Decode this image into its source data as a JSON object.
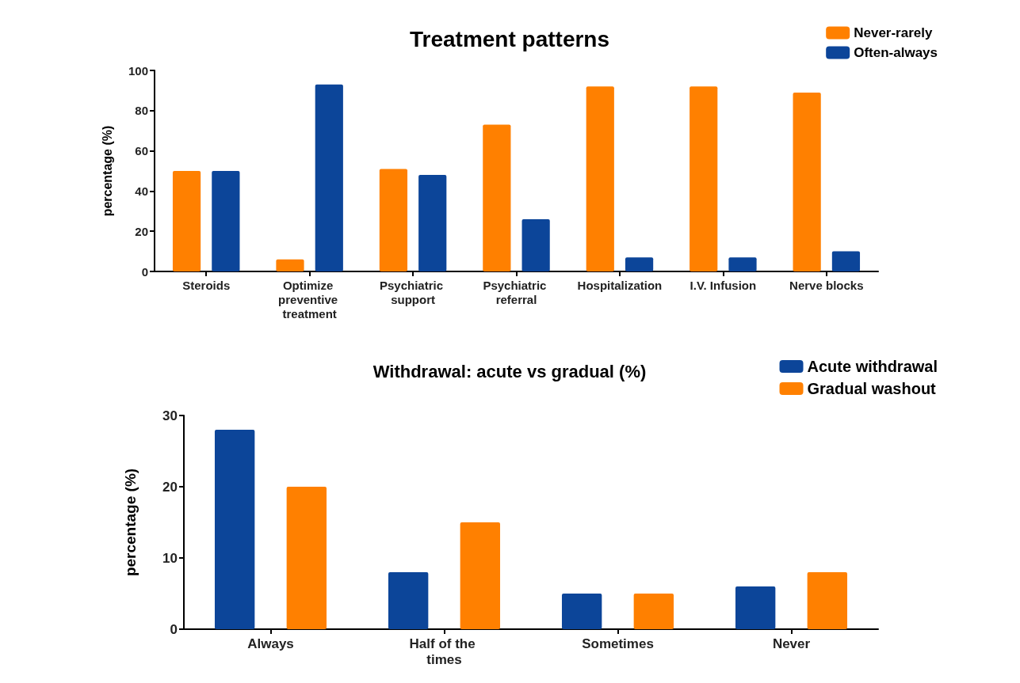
{
  "chart_data": [
    {
      "type": "bar",
      "title": "Treatment patterns",
      "ylabel": "percentage (%)",
      "categories": [
        "Steroids",
        "Optimize preventive treatment",
        "Psychiatric support",
        "Psychiatric referral",
        "Hospitalization",
        "I.V. Infusion",
        "Nerve blocks"
      ],
      "series": [
        {
          "name": "Never-rarely",
          "color": "#ff8000",
          "values": [
            50,
            6,
            51,
            73,
            92,
            92,
            89
          ]
        },
        {
          "name": "Often-always",
          "color": "#0c4599",
          "values": [
            50,
            93,
            48,
            26,
            7,
            7,
            10
          ]
        }
      ],
      "ylim": [
        0,
        100
      ],
      "yticks": [
        0,
        20,
        40,
        60,
        80,
        100
      ],
      "grid": false,
      "legend": "top right"
    },
    {
      "type": "bar",
      "title": "Withdrawal: acute vs gradual (%)",
      "ylabel": "percentage (%)",
      "categories": [
        "Always",
        "Half of the times",
        "Sometimes",
        "Never"
      ],
      "series": [
        {
          "name": "Acute withdrawal",
          "color": "#0c4599",
          "values": [
            28,
            8,
            5,
            6
          ]
        },
        {
          "name": "Gradual washout",
          "color": "#ff8000",
          "values": [
            20,
            15,
            5,
            8
          ]
        }
      ],
      "ylim": [
        0,
        30
      ],
      "yticks": [
        0,
        10,
        20,
        30
      ],
      "grid": false,
      "legend": "top right"
    }
  ]
}
